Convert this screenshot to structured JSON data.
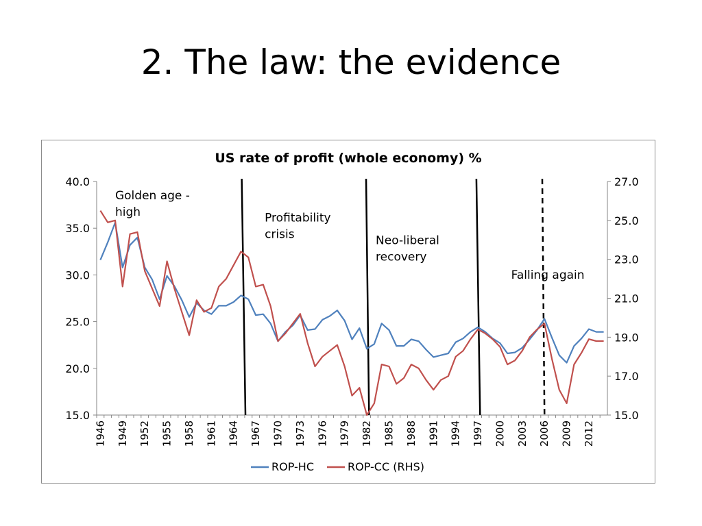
{
  "slide": {
    "title": "2. The law: the evidence"
  },
  "chart_data": {
    "type": "line",
    "title": "US rate of profit (whole economy) %",
    "x": [
      1946,
      1947,
      1948,
      1949,
      1950,
      1951,
      1952,
      1953,
      1954,
      1955,
      1956,
      1957,
      1958,
      1959,
      1960,
      1961,
      1962,
      1963,
      1964,
      1965,
      1966,
      1967,
      1968,
      1969,
      1970,
      1971,
      1972,
      1973,
      1974,
      1975,
      1976,
      1977,
      1978,
      1979,
      1980,
      1981,
      1982,
      1983,
      1984,
      1985,
      1986,
      1987,
      1988,
      1989,
      1990,
      1991,
      1992,
      1993,
      1994,
      1995,
      1996,
      1997,
      1998,
      1999,
      2000,
      2001,
      2002,
      2003,
      2004,
      2005,
      2006,
      2007,
      2008,
      2009,
      2010,
      2011,
      2012,
      2013,
      2014
    ],
    "x_tick_labels": [
      "1946",
      "1949",
      "1952",
      "1955",
      "1958",
      "1961",
      "1964",
      "1967",
      "1970",
      "1973",
      "1976",
      "1979",
      "1982",
      "1985",
      "1988",
      "1991",
      "1994",
      "1997",
      "2000",
      "2003",
      "2006",
      "2009",
      "2012"
    ],
    "series": [
      {
        "name": "ROP-HC",
        "axis": "left",
        "color": "#4f81bd",
        "values": [
          31.6,
          33.5,
          35.6,
          30.8,
          33.2,
          34.0,
          30.8,
          29.5,
          27.4,
          29.9,
          28.8,
          27.3,
          25.5,
          27.0,
          26.2,
          25.8,
          26.7,
          26.7,
          27.1,
          27.8,
          27.4,
          25.7,
          25.8,
          24.8,
          22.9,
          23.9,
          24.6,
          25.7,
          24.1,
          24.2,
          25.2,
          25.6,
          26.2,
          25.1,
          23.1,
          24.3,
          22.1,
          22.6,
          24.8,
          24.1,
          22.4,
          22.4,
          23.1,
          22.9,
          22.0,
          21.2,
          21.4,
          21.6,
          22.8,
          23.2,
          23.9,
          24.4,
          23.9,
          23.2,
          22.7,
          21.6,
          21.7,
          22.2,
          23.1,
          24.1,
          25.3,
          23.3,
          21.4,
          20.6,
          22.4,
          23.2,
          24.2,
          23.9,
          23.9
        ]
      },
      {
        "name": "ROP-CC (RHS)",
        "axis": "right",
        "color": "#c0504d",
        "values": [
          25.5,
          24.9,
          25.0,
          21.6,
          24.3,
          24.4,
          22.4,
          21.5,
          20.6,
          22.9,
          21.5,
          20.3,
          19.1,
          20.9,
          20.3,
          20.5,
          21.6,
          22.0,
          22.7,
          23.4,
          23.1,
          21.6,
          21.7,
          20.6,
          18.8,
          19.2,
          19.7,
          20.2,
          18.7,
          17.5,
          18.0,
          18.3,
          18.6,
          17.5,
          16.0,
          16.4,
          15.0,
          15.6,
          17.6,
          17.5,
          16.6,
          16.9,
          17.6,
          17.4,
          16.8,
          16.3,
          16.8,
          17.0,
          18.0,
          18.3,
          18.9,
          19.4,
          19.2,
          18.9,
          18.5,
          17.6,
          17.8,
          18.3,
          19.0,
          19.4,
          19.7,
          17.9,
          16.3,
          15.6,
          17.6,
          18.2,
          18.9,
          18.8,
          18.8
        ]
      }
    ],
    "y_left": {
      "ylim": [
        15,
        40
      ],
      "ticks": [
        "15.0",
        "20.0",
        "25.0",
        "30.0",
        "35.0",
        "40.0"
      ]
    },
    "y_right": {
      "ylim": [
        15,
        27
      ],
      "ticks": [
        "15.0",
        "17.0",
        "19.0",
        "21.0",
        "23.0",
        "25.0",
        "27.0"
      ]
    },
    "grid": false,
    "legend_placement": "bottom",
    "annotations": [
      {
        "lines": [
          "Golden age -",
          "high"
        ],
        "x": 1948,
        "y_left": 38.1
      },
      {
        "lines": [
          "Profitability",
          "crisis"
        ],
        "x": 1968.2,
        "y_left": 35.7
      },
      {
        "lines": [
          "Neo-liberal",
          "recovery"
        ],
        "x": 1983.2,
        "y_left": 33.3
      },
      {
        "lines": [
          "Falling again"
        ],
        "x": 2001.5,
        "y_left": 29.6
      }
    ],
    "dividers": [
      {
        "style": "solid",
        "x_top": 1965.1,
        "x_bottom": 1965.6
      },
      {
        "style": "solid",
        "x_top": 1981.9,
        "x_bottom": 1982.3
      },
      {
        "style": "solid",
        "x_top": 1996.8,
        "x_bottom": 1997.3
      },
      {
        "style": "dashed",
        "x_top": 2005.7,
        "x_bottom": 2006.0
      }
    ]
  }
}
